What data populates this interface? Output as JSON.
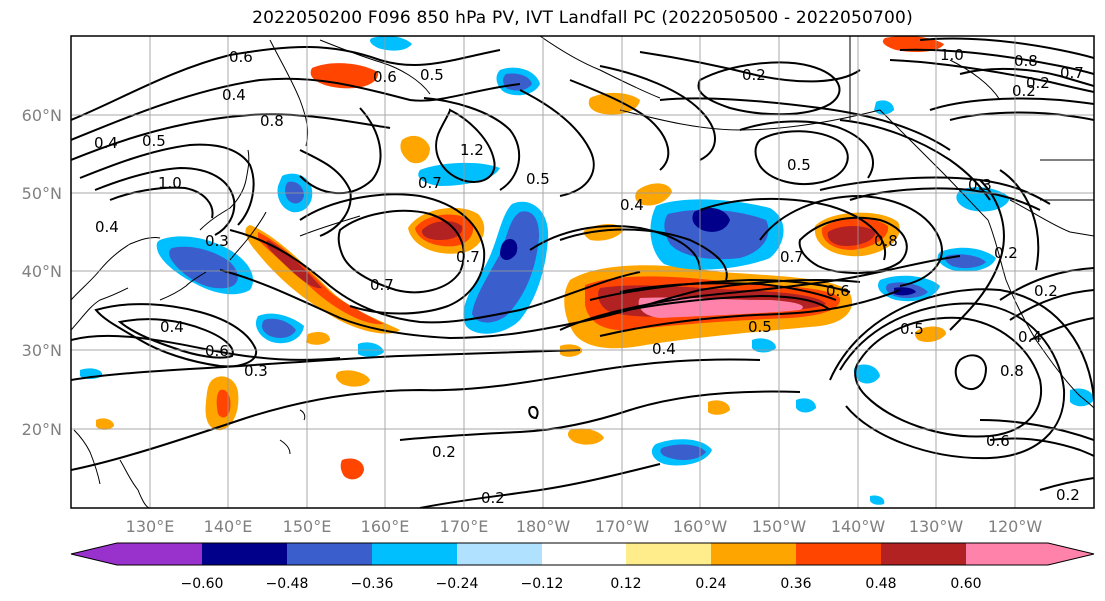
{
  "title": "2022050200 F096 850 hPa PV, IVT Landfall PC (2022050500 - 2022050700)",
  "lat_labels": [
    "60°N",
    "50°N",
    "40°N",
    "30°N",
    "20°N"
  ],
  "lon_labels": [
    "130°E",
    "140°E",
    "150°E",
    "160°E",
    "170°E",
    "180°W",
    "170°W",
    "160°W",
    "150°W",
    "140°W",
    "130°W",
    "120°W"
  ],
  "colorbar": {
    "colors": [
      "#9932cc",
      "#00008b",
      "#3a5fcd",
      "#00bfff",
      "#b0e2ff",
      "#ffffff",
      "#ffec8b",
      "#ffa500",
      "#ff4500",
      "#b22222",
      "#ff82ab"
    ],
    "tick_labels": [
      "−0.60",
      "−0.48",
      "−0.36",
      "−0.24",
      "−0.12",
      "0.12",
      "0.24",
      "0.36",
      "0.48",
      "0.60"
    ]
  },
  "contour_labels": [
    "0.6",
    "0.6",
    "0.5",
    "0.4",
    "0.8",
    "0.4",
    "0.5",
    "1.0",
    "0.7",
    "1.2",
    "0.5",
    "0.7",
    "0.7",
    "0.4",
    "0.3",
    "0.4",
    "0.6",
    "0.3",
    "0.2",
    "0.2",
    "1.0",
    "0.8",
    "0.7",
    "0.2",
    "0.2",
    "0.5",
    "0.3",
    "0.7",
    "0.8",
    "0.6",
    "0.5",
    "0.4",
    "0.5",
    "0.2",
    "0.2",
    "0.4",
    "0.8",
    "0.6",
    "0.2",
    "0.2"
  ]
}
